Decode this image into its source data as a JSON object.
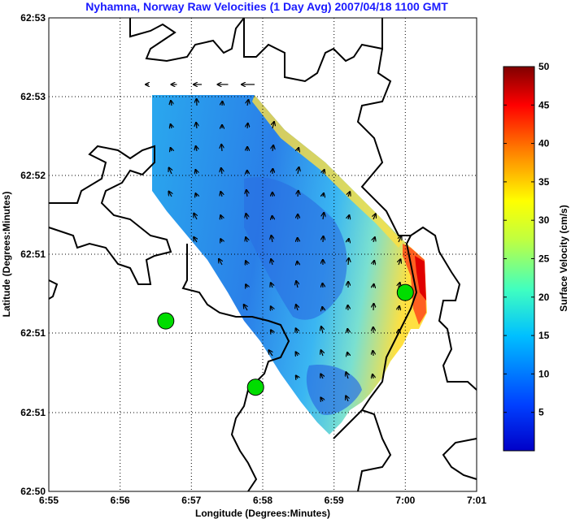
{
  "title": "Nyhamna, Norway Raw Velocities (1 Day Avg) 2007/04/18 1100 GMT",
  "xlabel": "Longitude (Degrees:Minutes)",
  "ylabel": "Latitude (Degrees:Minutes)",
  "x_ticks": [
    "6:55",
    "6:56",
    "6:57",
    "6:58",
    "6:59",
    "7:00",
    "7:01"
  ],
  "y_ticks": [
    "62:53",
    "62:53",
    "62:52",
    "62:51",
    "62:51",
    "62:51",
    "62:50"
  ],
  "colorbar": {
    "label": "Surface Velocity (cm/s)",
    "ticks": [
      "5",
      "10",
      "15",
      "20",
      "25",
      "30",
      "35",
      "40",
      "45",
      "50"
    ],
    "range": [
      0,
      50
    ],
    "colormap": "jet"
  },
  "colors": {
    "title": "#1a1aff",
    "station": "#00dd00",
    "coast": "#000000",
    "grid": "#000000"
  },
  "stations": [
    {
      "name": "station-left",
      "lon": 6.944,
      "lat": 62.851
    },
    {
      "name": "station-mid",
      "lon": 6.965,
      "lat": 62.844
    },
    {
      "name": "station-right",
      "lon": 7.0,
      "lat": 62.854
    }
  ]
}
